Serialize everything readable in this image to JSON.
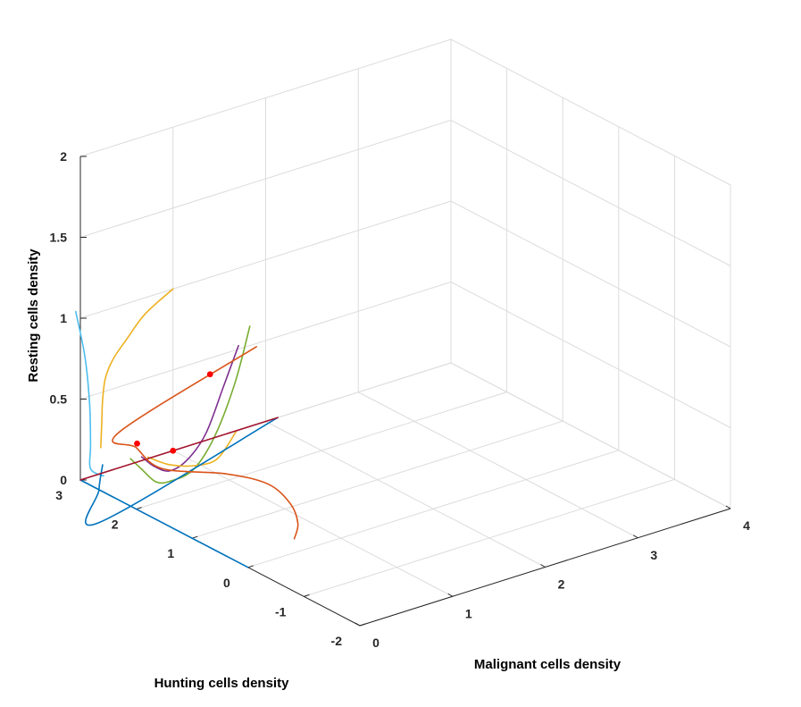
{
  "chart_data": {
    "type": "line3d",
    "title": "",
    "xlabel": "Malignant cells density",
    "ylabel": "Hunting cells density",
    "zlabel": "Resting cells density",
    "xlim": [
      0,
      4
    ],
    "ylim": [
      -2,
      3
    ],
    "zlim": [
      0,
      2
    ],
    "x_ticks": [
      "0",
      "1",
      "2",
      "3",
      "4"
    ],
    "y_ticks": [
      "-2",
      "-1",
      "0",
      "1",
      "2",
      "3"
    ],
    "z_ticks": [
      "0",
      "0.5",
      "1",
      "1.5",
      "2"
    ],
    "grid": true,
    "series": [
      {
        "color": "#77AC30",
        "points": [
          [
            0.2,
            0.3,
            1.4
          ],
          [
            0.1,
            0.4,
            1.05
          ],
          [
            0.0,
            0.6,
            0.7
          ],
          [
            -0.05,
            0.9,
            0.45
          ],
          [
            0.0,
            1.4,
            0.28
          ],
          [
            0.15,
            1.9,
            0.16
          ],
          [
            0.3,
            2.4,
            0.12
          ],
          [
            0.36,
            2.7,
            0.12
          ]
        ]
      },
      {
        "color": "#7E2F8E",
        "points": [
          [
            0.5,
            1.0,
            1.1
          ],
          [
            0.4,
            1.1,
            0.85
          ],
          [
            0.3,
            1.25,
            0.55
          ],
          [
            0.25,
            1.5,
            0.35
          ],
          [
            0.3,
            1.9,
            0.2
          ],
          [
            0.38,
            2.3,
            0.14
          ],
          [
            0.45,
            2.6,
            0.12
          ],
          [
            0.48,
            2.7,
            0.11
          ]
        ]
      },
      {
        "color": "#EDB120",
        "points": [
          [
            0.6,
            1.2,
            0.52
          ],
          [
            0.58,
            1.5,
            0.3
          ],
          [
            0.6,
            1.9,
            0.18
          ],
          [
            0.55,
            2.3,
            0.12
          ],
          [
            0.52,
            2.65,
            0.11
          ]
        ]
      },
      {
        "color": "#EDB120",
        "points": [
          [
            1.0,
            3.0,
            1.0
          ],
          [
            0.7,
            3.0,
            0.9
          ],
          [
            0.5,
            3.0,
            0.78
          ],
          [
            0.35,
            3.0,
            0.68
          ],
          [
            0.27,
            3.0,
            0.58
          ],
          [
            0.24,
            3.0,
            0.45
          ],
          [
            0.23,
            3.0,
            0.3
          ],
          [
            0.22,
            3.0,
            0.16
          ]
        ]
      },
      {
        "color": "#4DBEEE",
        "points": [
          [
            -0.05,
            3.0,
            1.05
          ],
          [
            0.05,
            3.0,
            0.75
          ],
          [
            0.1,
            3.0,
            0.45
          ],
          [
            0.11,
            3.0,
            0.2
          ],
          [
            0.11,
            3.0,
            0.05
          ],
          [
            0.25,
            3.0,
            -0.02
          ]
        ]
      },
      {
        "color": "#0072BD",
        "points": [
          [
            0.24,
            3.0,
            0.05
          ],
          [
            0.2,
            3.0,
            -0.1
          ],
          [
            0.2,
            3.0,
            -0.3
          ],
          [
            2.13,
            3.0,
            0.0
          ]
        ]
      },
      {
        "color": "#0072BD",
        "points": [
          [
            0.0,
            0.0,
            0.0
          ],
          [
            0.0,
            3.0,
            0.0
          ]
        ]
      },
      {
        "color": "#A2142F",
        "points": [
          [
            0.0,
            3.0,
            0.0
          ],
          [
            2.13,
            3.0,
            0.0
          ]
        ]
      },
      {
        "color": "#D95319",
        "points": [
          [
            0.68,
            0.3,
            0.0
          ],
          [
            0.9,
            0.6,
            0.0
          ],
          [
            1.0,
            0.9,
            0.05
          ],
          [
            1.0,
            1.3,
            0.1
          ],
          [
            0.85,
            1.8,
            0.1
          ],
          [
            0.55,
            2.45,
            0.07
          ],
          [
            0.48,
            2.8,
            0.15
          ],
          [
            0.42,
            3.0,
            0.22
          ],
          [
            1.9,
            3.0,
            0.48
          ]
        ]
      }
    ],
    "markers": [
      {
        "color": "#FF0000",
        "point": [
          0.6,
          2.98,
          0.12
        ]
      },
      {
        "color": "#FF0000",
        "point": [
          1.0,
          3.0,
          0.0
        ]
      },
      {
        "color": "#FF0000",
        "point": [
          1.4,
          3.0,
          0.4
        ]
      }
    ]
  }
}
